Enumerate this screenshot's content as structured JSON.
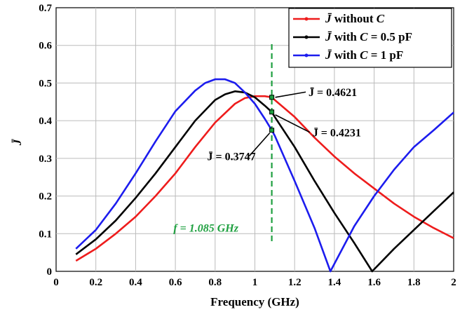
{
  "chart_data": {
    "type": "line",
    "xlabel": "Frequency (GHz)",
    "ylabel": "J̄",
    "xlim": [
      0,
      2
    ],
    "ylim": [
      0,
      0.7
    ],
    "xticks": [
      "0",
      "0.2",
      "0.4",
      "0.6",
      "0.8",
      "1",
      "1.2",
      "1.4",
      "1.6",
      "1.8",
      "2"
    ],
    "yticks": [
      "0",
      "0.1",
      "0.2",
      "0.3",
      "0.4",
      "0.5",
      "0.6",
      "0.7"
    ],
    "grid": true,
    "legend_position": "top-right",
    "series": [
      {
        "name": "J̄ without C",
        "legend_label": "without",
        "legend_var": "C",
        "color": "#ee1c1c",
        "x": [
          0.1,
          0.2,
          0.3,
          0.4,
          0.5,
          0.6,
          0.7,
          0.8,
          0.9,
          0.95,
          1.0,
          1.05,
          1.085,
          1.1,
          1.2,
          1.3,
          1.4,
          1.5,
          1.6,
          1.7,
          1.8,
          1.9,
          2.0
        ],
        "y": [
          0.028,
          0.06,
          0.1,
          0.145,
          0.2,
          0.26,
          0.33,
          0.395,
          0.445,
          0.46,
          0.465,
          0.465,
          0.4621,
          0.455,
          0.41,
          0.355,
          0.305,
          0.26,
          0.22,
          0.18,
          0.145,
          0.115,
          0.088
        ]
      },
      {
        "name": "J̄ with C = 0.5 pF",
        "legend_label": "with",
        "legend_var": "C",
        "legend_value": "= 0.5 pF",
        "color": "#000000",
        "x": [
          0.1,
          0.2,
          0.3,
          0.4,
          0.5,
          0.6,
          0.7,
          0.8,
          0.85,
          0.9,
          0.95,
          1.0,
          1.05,
          1.085,
          1.1,
          1.2,
          1.3,
          1.4,
          1.5,
          1.59,
          1.7,
          1.8,
          1.9,
          2.0
        ],
        "y": [
          0.045,
          0.085,
          0.135,
          0.195,
          0.26,
          0.33,
          0.4,
          0.455,
          0.47,
          0.478,
          0.475,
          0.462,
          0.44,
          0.4231,
          0.41,
          0.33,
          0.24,
          0.155,
          0.075,
          0.0,
          0.06,
          0.11,
          0.16,
          0.21
        ]
      },
      {
        "name": "J̄ with C = 1 pF",
        "legend_label": "with",
        "legend_var": "C",
        "legend_value": "= 1 pF",
        "color": "#1c1cee",
        "x": [
          0.1,
          0.2,
          0.3,
          0.4,
          0.5,
          0.6,
          0.7,
          0.75,
          0.8,
          0.85,
          0.9,
          0.95,
          1.0,
          1.05,
          1.085,
          1.1,
          1.2,
          1.3,
          1.38,
          1.5,
          1.6,
          1.7,
          1.8,
          1.9,
          2.0
        ],
        "y": [
          0.06,
          0.11,
          0.18,
          0.26,
          0.345,
          0.425,
          0.48,
          0.5,
          0.51,
          0.51,
          0.5,
          0.475,
          0.445,
          0.405,
          0.3747,
          0.36,
          0.24,
          0.115,
          0.0,
          0.12,
          0.2,
          0.27,
          0.33,
          0.375,
          0.422
        ]
      }
    ],
    "marker_line": {
      "x": 1.085,
      "label": "f = 1.085 GHz",
      "label_x": 0.59,
      "label_y": 0.105,
      "color": "#1fa040"
    },
    "annotations": [
      {
        "text": "J̄ = 0.4621",
        "x": 1.085,
        "y": 0.4621,
        "text_x": 1.27,
        "text_y": 0.465
      },
      {
        "text": "J̄ = 0.4231",
        "x": 1.085,
        "y": 0.4231,
        "text_x": 1.29,
        "text_y": 0.358
      },
      {
        "text": "J̄ = 0.3747",
        "x": 1.085,
        "y": 0.3747,
        "text_x": 0.76,
        "text_y": 0.295
      }
    ]
  }
}
